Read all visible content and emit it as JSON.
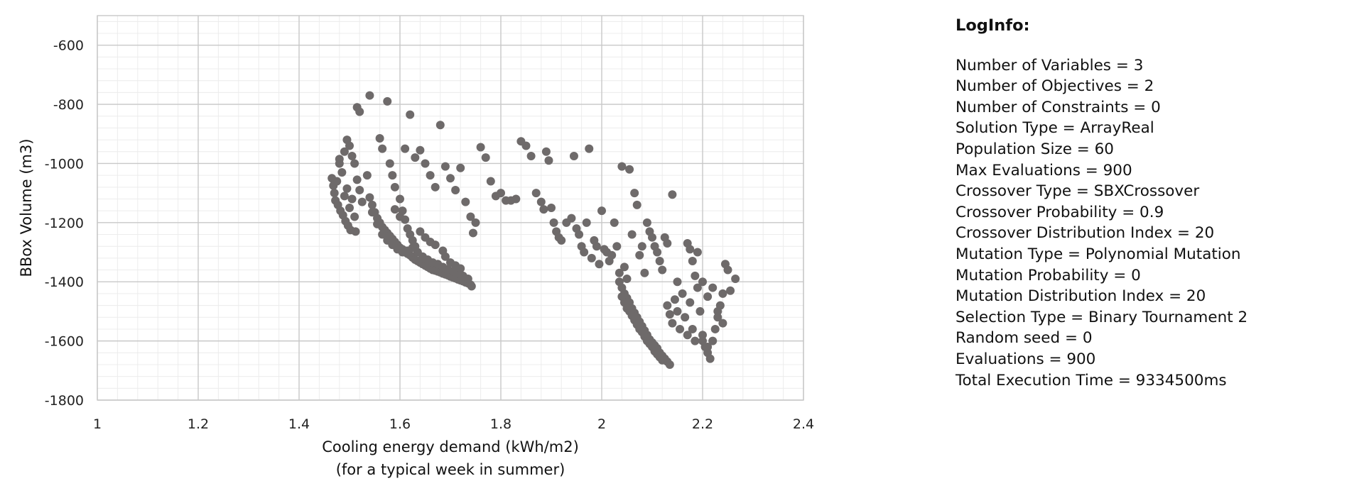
{
  "chart_data": {
    "type": "scatter",
    "title": "",
    "xlabel": "Cooling energy demand (kWh/m2)",
    "xlabel_line2": "(for a typical week in summer)",
    "ylabel": "BBox Volume (m3)",
    "xlim": [
      1,
      2.4
    ],
    "ylim": [
      -1800,
      -500
    ],
    "x_ticks": [
      "1",
      "1.2",
      "1.4",
      "1.6",
      "1.8",
      "2",
      "2.2",
      "2.4"
    ],
    "y_ticks": [
      "-600",
      "-800",
      "-1000",
      "-1200",
      "-1400",
      "-1600",
      "-1800"
    ],
    "grid": true,
    "point_color": "#6e6a6a",
    "grid_color": "#c8c8c8",
    "minor_grid_color": "#ececec",
    "series": [
      {
        "points": [
          [
            1.465,
            -1050
          ],
          [
            1.468,
            -1075
          ],
          [
            1.47,
            -1100
          ],
          [
            1.472,
            -1125
          ],
          [
            1.475,
            -1060
          ],
          [
            1.477,
            -1140
          ],
          [
            1.48,
            -1000
          ],
          [
            1.482,
            -1160
          ],
          [
            1.485,
            -1030
          ],
          [
            1.487,
            -1175
          ],
          [
            1.49,
            -1110
          ],
          [
            1.492,
            -1195
          ],
          [
            1.495,
            -1085
          ],
          [
            1.497,
            -1210
          ],
          [
            1.5,
            -1150
          ],
          [
            1.502,
            -1225
          ],
          [
            1.505,
            -1120
          ],
          [
            1.51,
            -1180
          ],
          [
            1.512,
            -1230
          ],
          [
            1.48,
            -985
          ],
          [
            1.49,
            -960
          ],
          [
            1.495,
            -920
          ],
          [
            1.5,
            -940
          ],
          [
            1.505,
            -975
          ],
          [
            1.51,
            -1000
          ],
          [
            1.515,
            -1055
          ],
          [
            1.52,
            -1090
          ],
          [
            1.525,
            -1130
          ],
          [
            1.515,
            -810
          ],
          [
            1.52,
            -825
          ],
          [
            1.54,
            -770
          ],
          [
            1.56,
            -915
          ],
          [
            1.565,
            -950
          ],
          [
            1.575,
            -790
          ],
          [
            1.535,
            -1040
          ],
          [
            1.54,
            -1115
          ],
          [
            1.545,
            -1140
          ],
          [
            1.55,
            -1165
          ],
          [
            1.555,
            -1185
          ],
          [
            1.56,
            -1200
          ],
          [
            1.565,
            -1215
          ],
          [
            1.57,
            -1225
          ],
          [
            1.575,
            -1235
          ],
          [
            1.58,
            -1245
          ],
          [
            1.585,
            -1255
          ],
          [
            1.59,
            -1265
          ],
          [
            1.595,
            -1275
          ],
          [
            1.6,
            -1285
          ],
          [
            1.605,
            -1290
          ],
          [
            1.61,
            -1300
          ],
          [
            1.615,
            -1305
          ],
          [
            1.62,
            -1310
          ],
          [
            1.625,
            -1318
          ],
          [
            1.63,
            -1325
          ],
          [
            1.635,
            -1330
          ],
          [
            1.64,
            -1335
          ],
          [
            1.645,
            -1340
          ],
          [
            1.65,
            -1345
          ],
          [
            1.655,
            -1350
          ],
          [
            1.66,
            -1355
          ],
          [
            1.665,
            -1360
          ],
          [
            1.67,
            -1362
          ],
          [
            1.675,
            -1365
          ],
          [
            1.68,
            -1368
          ],
          [
            1.685,
            -1372
          ],
          [
            1.69,
            -1375
          ],
          [
            1.695,
            -1378
          ],
          [
            1.7,
            -1382
          ],
          [
            1.705,
            -1385
          ],
          [
            1.71,
            -1388
          ],
          [
            1.715,
            -1392
          ],
          [
            1.72,
            -1395
          ],
          [
            1.725,
            -1398
          ],
          [
            1.73,
            -1402
          ],
          [
            1.735,
            -1405
          ],
          [
            1.74,
            -1410
          ],
          [
            1.742,
            -1415
          ],
          [
            1.545,
            -1165
          ],
          [
            1.555,
            -1205
          ],
          [
            1.565,
            -1240
          ],
          [
            1.575,
            -1260
          ],
          [
            1.585,
            -1275
          ],
          [
            1.595,
            -1290
          ],
          [
            1.605,
            -1300
          ],
          [
            1.615,
            -1295
          ],
          [
            1.625,
            -1285
          ],
          [
            1.635,
            -1300
          ],
          [
            1.645,
            -1315
          ],
          [
            1.655,
            -1325
          ],
          [
            1.665,
            -1335
          ],
          [
            1.675,
            -1340
          ],
          [
            1.685,
            -1350
          ],
          [
            1.695,
            -1358
          ],
          [
            1.705,
            -1365
          ],
          [
            1.715,
            -1372
          ],
          [
            1.725,
            -1380
          ],
          [
            1.735,
            -1390
          ],
          [
            1.58,
            -1000
          ],
          [
            1.585,
            -1040
          ],
          [
            1.59,
            -1080
          ],
          [
            1.6,
            -1120
          ],
          [
            1.605,
            -1160
          ],
          [
            1.61,
            -1190
          ],
          [
            1.615,
            -1220
          ],
          [
            1.62,
            -1240
          ],
          [
            1.625,
            -1260
          ],
          [
            1.63,
            -1280
          ],
          [
            1.64,
            -1230
          ],
          [
            1.65,
            -1250
          ],
          [
            1.66,
            -1265
          ],
          [
            1.67,
            -1275
          ],
          [
            1.685,
            -1295
          ],
          [
            1.69,
            -1315
          ],
          [
            1.7,
            -1335
          ],
          [
            1.71,
            -1345
          ],
          [
            1.72,
            -1355
          ],
          [
            1.59,
            -1155
          ],
          [
            1.6,
            -1180
          ],
          [
            1.61,
            -950
          ],
          [
            1.62,
            -835
          ],
          [
            1.63,
            -980
          ],
          [
            1.64,
            -955
          ],
          [
            1.65,
            -1000
          ],
          [
            1.66,
            -1040
          ],
          [
            1.67,
            -1080
          ],
          [
            1.68,
            -870
          ],
          [
            1.69,
            -1010
          ],
          [
            1.7,
            -1050
          ],
          [
            1.71,
            -1090
          ],
          [
            1.72,
            -1015
          ],
          [
            1.73,
            -1130
          ],
          [
            1.74,
            -1180
          ],
          [
            1.745,
            -1235
          ],
          [
            1.75,
            -1200
          ],
          [
            1.76,
            -945
          ],
          [
            1.77,
            -980
          ],
          [
            1.78,
            -1060
          ],
          [
            1.79,
            -1110
          ],
          [
            1.8,
            -1100
          ],
          [
            1.81,
            -1125
          ],
          [
            1.82,
            -1125
          ],
          [
            1.83,
            -1120
          ],
          [
            1.84,
            -925
          ],
          [
            1.85,
            -940
          ],
          [
            1.86,
            -975
          ],
          [
            1.87,
            -1100
          ],
          [
            1.88,
            -1130
          ],
          [
            1.885,
            -1155
          ],
          [
            1.89,
            -960
          ],
          [
            1.895,
            -990
          ],
          [
            1.9,
            -1150
          ],
          [
            1.905,
            -1200
          ],
          [
            1.91,
            -1230
          ],
          [
            1.915,
            -1250
          ],
          [
            1.92,
            -1260
          ],
          [
            1.93,
            -1200
          ],
          [
            1.94,
            -1185
          ],
          [
            1.945,
            -975
          ],
          [
            1.95,
            -1220
          ],
          [
            1.955,
            -1240
          ],
          [
            1.96,
            -1280
          ],
          [
            1.965,
            -1300
          ],
          [
            1.97,
            -1200
          ],
          [
            1.975,
            -950
          ],
          [
            1.98,
            -1320
          ],
          [
            1.985,
            -1260
          ],
          [
            1.99,
            -1280
          ],
          [
            1.995,
            -1340
          ],
          [
            2.0,
            -1160
          ],
          [
            2.005,
            -1290
          ],
          [
            2.01,
            -1300
          ],
          [
            2.015,
            -1330
          ],
          [
            2.02,
            -1310
          ],
          [
            2.025,
            -1200
          ],
          [
            2.03,
            -1280
          ],
          [
            2.035,
            -1370
          ],
          [
            2.04,
            -1010
          ],
          [
            2.045,
            -1350
          ],
          [
            2.05,
            -1390
          ],
          [
            2.055,
            -1020
          ],
          [
            2.06,
            -1240
          ],
          [
            2.065,
            -1100
          ],
          [
            2.07,
            -1140
          ],
          [
            2.075,
            -1310
          ],
          [
            2.08,
            -1280
          ],
          [
            2.085,
            -1370
          ],
          [
            2.09,
            -1200
          ],
          [
            2.095,
            -1230
          ],
          [
            2.1,
            -1250
          ],
          [
            2.105,
            -1280
          ],
          [
            2.11,
            -1300
          ],
          [
            2.115,
            -1330
          ],
          [
            2.12,
            -1360
          ],
          [
            2.125,
            -1250
          ],
          [
            2.13,
            -1270
          ],
          [
            2.14,
            -1105
          ],
          [
            2.15,
            -1400
          ],
          [
            2.035,
            -1400
          ],
          [
            2.04,
            -1420
          ],
          [
            2.045,
            -1440
          ],
          [
            2.05,
            -1455
          ],
          [
            2.055,
            -1470
          ],
          [
            2.06,
            -1490
          ],
          [
            2.065,
            -1505
          ],
          [
            2.07,
            -1520
          ],
          [
            2.075,
            -1535
          ],
          [
            2.08,
            -1550
          ],
          [
            2.085,
            -1565
          ],
          [
            2.09,
            -1580
          ],
          [
            2.095,
            -1595
          ],
          [
            2.1,
            -1605
          ],
          [
            2.105,
            -1615
          ],
          [
            2.11,
            -1625
          ],
          [
            2.115,
            -1640
          ],
          [
            2.12,
            -1650
          ],
          [
            2.125,
            -1660
          ],
          [
            2.13,
            -1670
          ],
          [
            2.135,
            -1680
          ],
          [
            2.04,
            -1450
          ],
          [
            2.045,
            -1470
          ],
          [
            2.05,
            -1490
          ],
          [
            2.055,
            -1500
          ],
          [
            2.06,
            -1515
          ],
          [
            2.065,
            -1530
          ],
          [
            2.07,
            -1545
          ],
          [
            2.075,
            -1560
          ],
          [
            2.08,
            -1570
          ],
          [
            2.085,
            -1585
          ],
          [
            2.09,
            -1600
          ],
          [
            2.095,
            -1610
          ],
          [
            2.1,
            -1620
          ],
          [
            2.105,
            -1635
          ],
          [
            2.11,
            -1645
          ],
          [
            2.115,
            -1655
          ],
          [
            2.12,
            -1665
          ],
          [
            2.13,
            -1480
          ],
          [
            2.135,
            -1510
          ],
          [
            2.14,
            -1540
          ],
          [
            2.145,
            -1460
          ],
          [
            2.15,
            -1500
          ],
          [
            2.155,
            -1560
          ],
          [
            2.16,
            -1440
          ],
          [
            2.165,
            -1520
          ],
          [
            2.17,
            -1580
          ],
          [
            2.175,
            -1470
          ],
          [
            2.18,
            -1330
          ],
          [
            2.185,
            -1380
          ],
          [
            2.19,
            -1420
          ],
          [
            2.195,
            -1500
          ],
          [
            2.2,
            -1580
          ],
          [
            2.205,
            -1620
          ],
          [
            2.21,
            -1640
          ],
          [
            2.215,
            -1660
          ],
          [
            2.22,
            -1600
          ],
          [
            2.225,
            -1560
          ],
          [
            2.23,
            -1520
          ],
          [
            2.235,
            -1480
          ],
          [
            2.24,
            -1440
          ],
          [
            2.245,
            -1340
          ],
          [
            2.25,
            -1360
          ],
          [
            2.255,
            -1430
          ],
          [
            2.265,
            -1390
          ],
          [
            2.17,
            -1270
          ],
          [
            2.175,
            -1290
          ],
          [
            2.19,
            -1300
          ],
          [
            2.2,
            -1400
          ],
          [
            2.21,
            -1450
          ],
          [
            2.22,
            -1420
          ],
          [
            2.23,
            -1500
          ],
          [
            2.24,
            -1540
          ],
          [
            2.2,
            -1600
          ],
          [
            2.21,
            -1620
          ],
          [
            2.18,
            -1560
          ],
          [
            2.185,
            -1600
          ]
        ]
      }
    ]
  },
  "loginfo": {
    "title": "LogInfo:",
    "lines": [
      "Number of Variables = 3",
      "Number of Objectives = 2",
      "Number of Constraints = 0",
      "Solution Type = ArrayReal",
      "Population Size = 60",
      "Max Evaluations = 900",
      "Crossover Type = SBXCrossover",
      "Crossover Probability = 0.9",
      "Crossover Distribution Index = 20",
      "Mutation Type = Polynomial Mutation",
      "Mutation Probability = 0",
      "Mutation Distribution Index = 20",
      "Selection Type = Binary Tournament 2",
      "Random seed = 0",
      "Evaluations = 900",
      "Total Execution Time = 9334500ms"
    ]
  }
}
